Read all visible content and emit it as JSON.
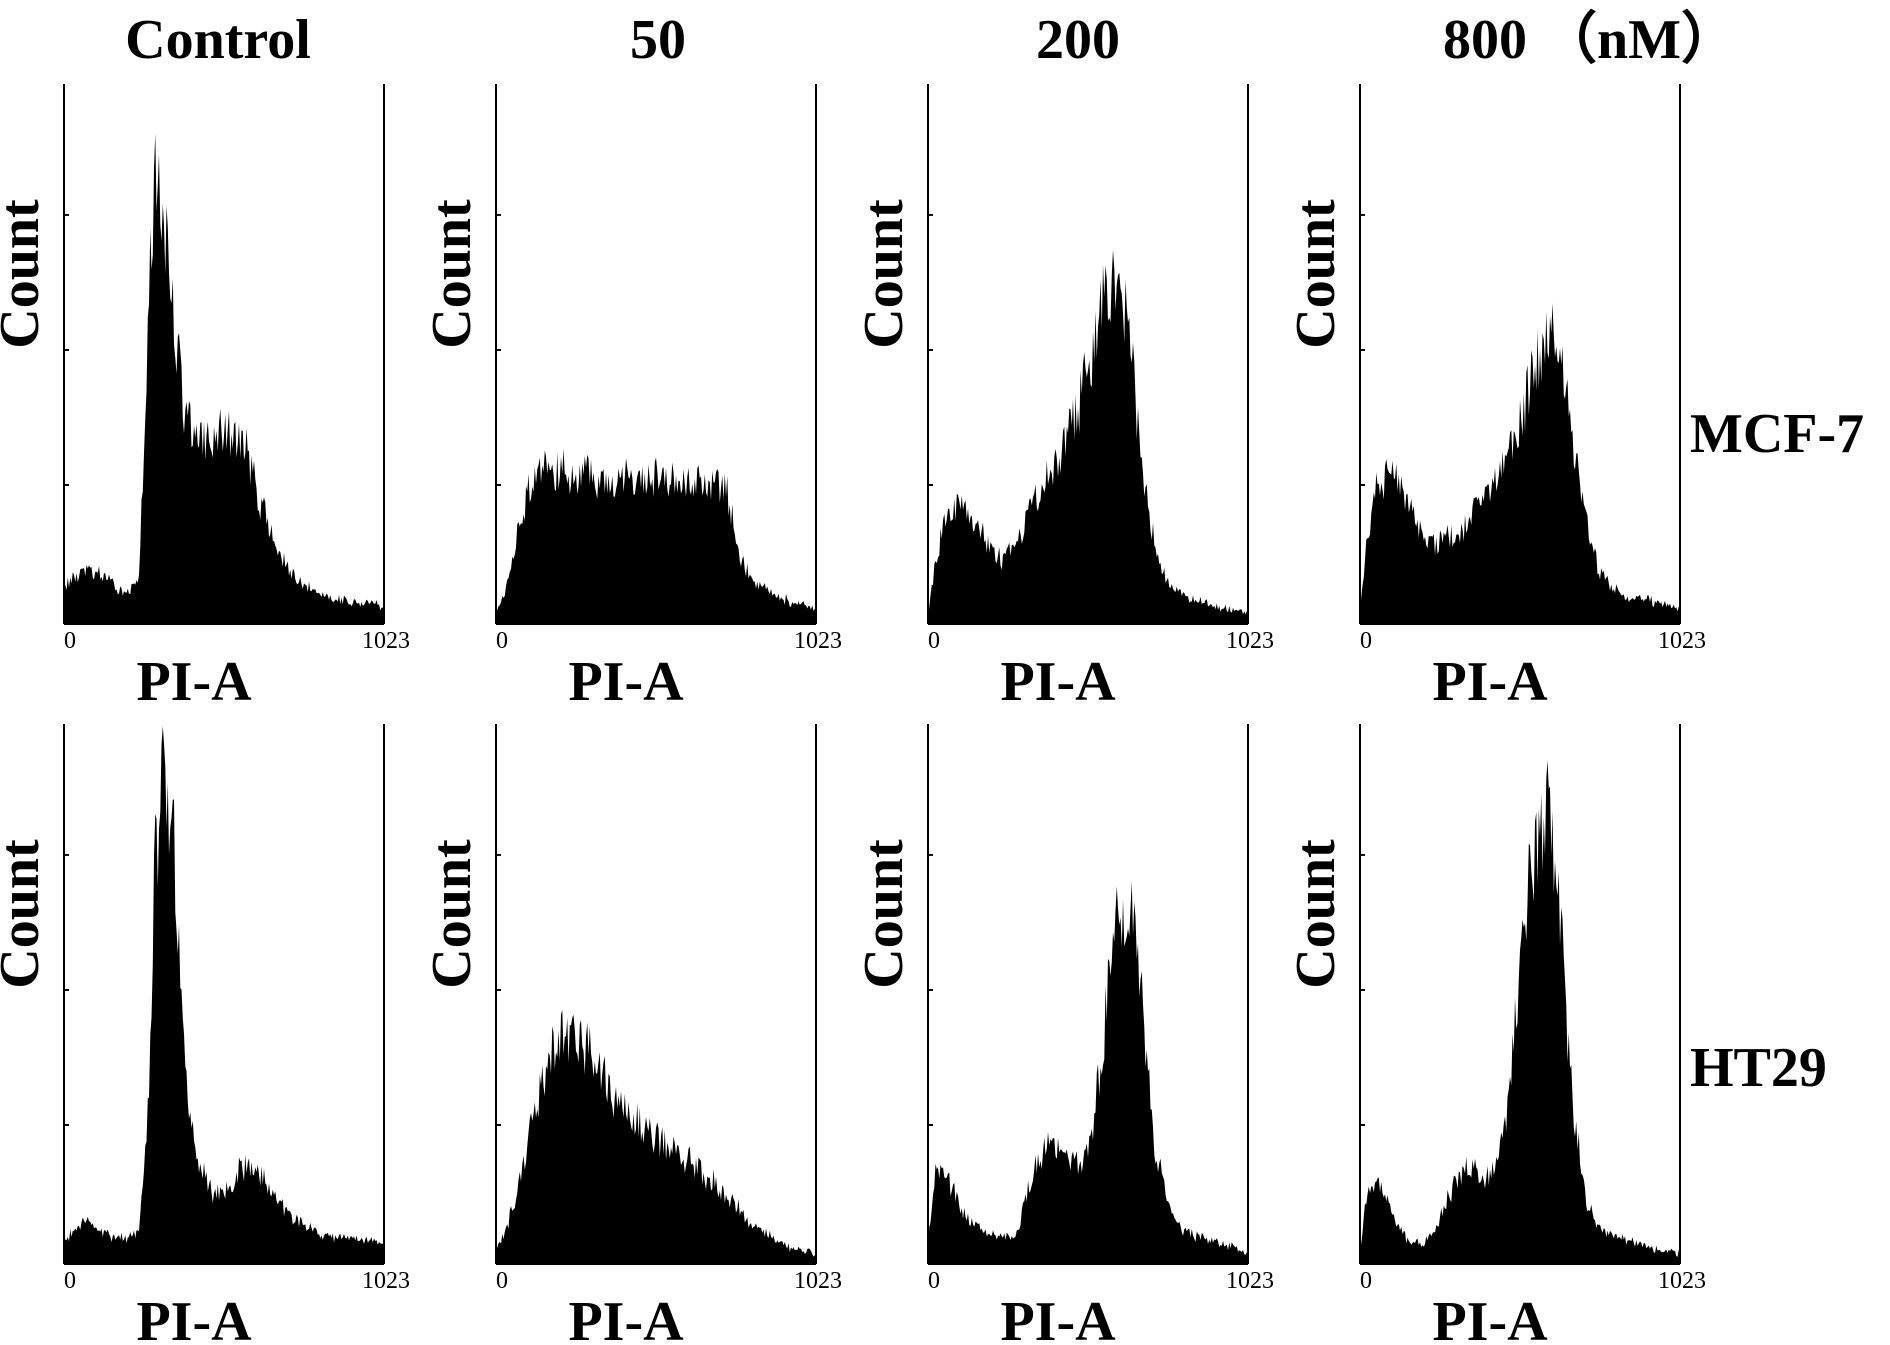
{
  "column_titles": [
    "Control",
    "50",
    "200",
    "800 （nM）"
  ],
  "row_labels": [
    "MCF-7",
    "HT29"
  ],
  "chart_data": [
    {
      "type": "area",
      "row": "MCF-7",
      "column": "Control",
      "xlabel": "PI-A",
      "ylabel": "Count",
      "xlim": [
        0,
        1023
      ],
      "x_ticks": [
        "0",
        "1023"
      ],
      "x": [
        0,
        40,
        80,
        120,
        160,
        200,
        240,
        260,
        280,
        300,
        340,
        380,
        420,
        460,
        500,
        540,
        580,
        620,
        680,
        740,
        800,
        860,
        920,
        980,
        1023
      ],
      "y": [
        0.07,
        0.09,
        0.1,
        0.09,
        0.07,
        0.06,
        0.08,
        0.4,
        0.72,
        0.86,
        0.62,
        0.42,
        0.33,
        0.34,
        0.35,
        0.35,
        0.33,
        0.24,
        0.14,
        0.08,
        0.06,
        0.05,
        0.04,
        0.04,
        0.03
      ]
    },
    {
      "type": "area",
      "row": "MCF-7",
      "column": "50",
      "xlabel": "PI-A",
      "ylabel": "Count",
      "xlim": [
        0,
        1023
      ],
      "x_ticks": [
        "0",
        "1023"
      ],
      "x": [
        0,
        30,
        60,
        100,
        140,
        180,
        220,
        260,
        300,
        340,
        380,
        420,
        460,
        500,
        540,
        580,
        620,
        660,
        700,
        740,
        780,
        820,
        880,
        940,
        1023
      ],
      "y": [
        0.02,
        0.06,
        0.14,
        0.24,
        0.3,
        0.29,
        0.28,
        0.27,
        0.28,
        0.27,
        0.27,
        0.28,
        0.27,
        0.27,
        0.28,
        0.26,
        0.26,
        0.27,
        0.26,
        0.24,
        0.12,
        0.08,
        0.06,
        0.04,
        0.03
      ]
    },
    {
      "type": "area",
      "row": "MCF-7",
      "column": "200",
      "xlabel": "PI-A",
      "ylabel": "Count",
      "xlim": [
        0,
        1023
      ],
      "x_ticks": [
        "0",
        "1023"
      ],
      "x": [
        0,
        20,
        50,
        90,
        120,
        160,
        200,
        240,
        280,
        320,
        360,
        400,
        440,
        480,
        520,
        560,
        600,
        640,
        680,
        720,
        760,
        820,
        880,
        940,
        1023
      ],
      "y": [
        0.02,
        0.1,
        0.18,
        0.23,
        0.21,
        0.18,
        0.14,
        0.12,
        0.14,
        0.2,
        0.25,
        0.29,
        0.34,
        0.4,
        0.5,
        0.6,
        0.66,
        0.58,
        0.3,
        0.16,
        0.08,
        0.05,
        0.04,
        0.03,
        0.02
      ]
    },
    {
      "type": "area",
      "row": "MCF-7",
      "column": "800 （nM）",
      "xlabel": "PI-A",
      "ylabel": "Count",
      "xlim": [
        0,
        1023
      ],
      "x_ticks": [
        "0",
        "1023"
      ],
      "x": [
        0,
        20,
        50,
        90,
        120,
        160,
        200,
        240,
        280,
        320,
        360,
        400,
        440,
        480,
        520,
        560,
        600,
        640,
        680,
        720,
        760,
        820,
        880,
        940,
        1023
      ],
      "y": [
        0.03,
        0.14,
        0.24,
        0.28,
        0.26,
        0.21,
        0.17,
        0.15,
        0.16,
        0.17,
        0.21,
        0.24,
        0.27,
        0.32,
        0.4,
        0.48,
        0.54,
        0.5,
        0.35,
        0.22,
        0.1,
        0.06,
        0.05,
        0.04,
        0.03
      ]
    },
    {
      "type": "area",
      "row": "HT29",
      "column": "Control",
      "xlabel": "PI-A",
      "ylabel": "Count",
      "xlim": [
        0,
        1023
      ],
      "x_ticks": [
        "0",
        "1023"
      ],
      "x": [
        0,
        40,
        80,
        120,
        160,
        200,
        240,
        270,
        290,
        310,
        330,
        350,
        370,
        400,
        440,
        480,
        520,
        560,
        600,
        640,
        680,
        740,
        800,
        880,
        1023
      ],
      "y": [
        0.04,
        0.07,
        0.08,
        0.06,
        0.05,
        0.05,
        0.06,
        0.3,
        0.72,
        0.88,
        0.92,
        0.8,
        0.52,
        0.28,
        0.17,
        0.13,
        0.14,
        0.17,
        0.19,
        0.16,
        0.12,
        0.08,
        0.06,
        0.05,
        0.04
      ]
    },
    {
      "type": "area",
      "row": "HT29",
      "column": "50",
      "xlabel": "PI-A",
      "ylabel": "Count",
      "xlim": [
        0,
        1023
      ],
      "x_ticks": [
        "0",
        "1023"
      ],
      "x": [
        0,
        30,
        60,
        100,
        140,
        180,
        220,
        260,
        300,
        340,
        380,
        420,
        460,
        500,
        540,
        580,
        620,
        660,
        700,
        740,
        780,
        820,
        880,
        940,
        1023
      ],
      "y": [
        0.02,
        0.06,
        0.12,
        0.22,
        0.32,
        0.4,
        0.42,
        0.41,
        0.39,
        0.35,
        0.31,
        0.28,
        0.26,
        0.24,
        0.22,
        0.2,
        0.19,
        0.17,
        0.15,
        0.12,
        0.1,
        0.07,
        0.05,
        0.03,
        0.02
      ]
    },
    {
      "type": "area",
      "row": "HT29",
      "column": "200",
      "xlabel": "PI-A",
      "ylabel": "Count",
      "xlim": [
        0,
        1023
      ],
      "x_ticks": [
        "0",
        "1023"
      ],
      "x": [
        0,
        20,
        50,
        90,
        130,
        180,
        230,
        280,
        320,
        360,
        400,
        440,
        480,
        520,
        560,
        600,
        640,
        680,
        720,
        760,
        800,
        860,
        920,
        980,
        1023
      ],
      "y": [
        0.03,
        0.16,
        0.18,
        0.12,
        0.08,
        0.06,
        0.05,
        0.05,
        0.14,
        0.2,
        0.24,
        0.2,
        0.18,
        0.22,
        0.42,
        0.62,
        0.7,
        0.52,
        0.24,
        0.12,
        0.07,
        0.05,
        0.04,
        0.03,
        0.02
      ]
    },
    {
      "type": "area",
      "row": "HT29",
      "column": "800 （nM）",
      "xlabel": "PI-A",
      "ylabel": "Count",
      "xlim": [
        0,
        1023
      ],
      "x_ticks": [
        "0",
        "1023"
      ],
      "x": [
        0,
        20,
        50,
        80,
        120,
        160,
        200,
        240,
        280,
        320,
        360,
        400,
        440,
        480,
        520,
        560,
        600,
        640,
        680,
        720,
        760,
        820,
        880,
        940,
        1023
      ],
      "y": [
        0.03,
        0.12,
        0.16,
        0.13,
        0.07,
        0.04,
        0.04,
        0.06,
        0.12,
        0.17,
        0.18,
        0.16,
        0.18,
        0.34,
        0.62,
        0.8,
        0.84,
        0.62,
        0.3,
        0.12,
        0.07,
        0.05,
        0.04,
        0.03,
        0.02
      ]
    }
  ]
}
